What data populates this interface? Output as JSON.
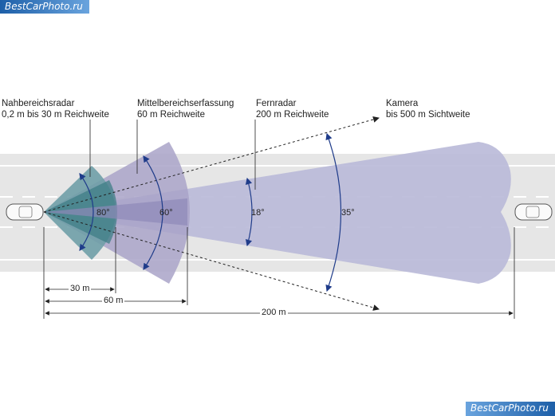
{
  "watermark": "BestCarPhoto.ru",
  "sensors": {
    "near": {
      "title": "Nahbereichsradar",
      "range": "0,2 m bis 30 m Reichweite",
      "angle": "80°"
    },
    "mid": {
      "title": "Mittelbereichserfassung",
      "range": "60 m Reichweite",
      "angle": "60°"
    },
    "far": {
      "title": "Fernradar",
      "range": "200 m Reichweite",
      "angle": "18°"
    },
    "camera": {
      "title": "Kamera",
      "range": "bis 500 m Sichtweite",
      "angle": "35°"
    }
  },
  "distances": {
    "d30": "30 m",
    "d60": "60 m",
    "d200": "200 m"
  },
  "colors": {
    "road": "#e6e6e6",
    "lane_marking": "#ffffff",
    "far_beam": "#b9b9d8",
    "mid_beam": "#a9a3c8",
    "near_beam": "#6f9ea7",
    "core": "#3f7d86"
  }
}
